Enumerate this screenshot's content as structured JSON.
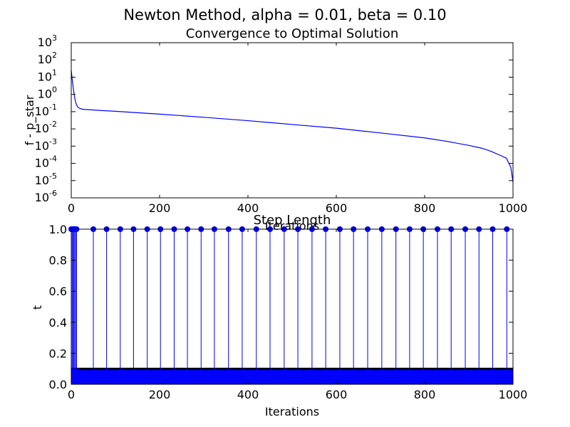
{
  "figure": {
    "suptitle": "Newton Method, alpha = 0.01, beta = 0.10"
  },
  "chart_data": [
    {
      "type": "line",
      "title": "Convergence to Optimal Solution",
      "xlabel": "Iterations",
      "ylabel": "f - p_star",
      "xlim": [
        0,
        1000
      ],
      "ylim": [
        1e-06,
        1000
      ],
      "yscale": "log",
      "grid": false,
      "xticks": [
        0,
        200,
        400,
        600,
        800,
        1000
      ],
      "yticks_exponents": [
        -6,
        -5,
        -4,
        -3,
        -2,
        -1,
        0,
        1,
        2,
        3
      ],
      "series": [
        {
          "color": "#0000ff",
          "x": [
            0,
            2,
            4,
            6,
            8,
            10,
            12,
            15,
            20,
            25,
            30,
            40,
            60,
            100,
            200,
            300,
            400,
            500,
            600,
            700,
            800,
            850,
            900,
            930,
            950,
            970,
            985,
            995,
            1000
          ],
          "y": [
            25,
            8,
            3,
            1.3,
            0.6,
            0.35,
            0.25,
            0.18,
            0.15,
            0.14,
            0.135,
            0.13,
            0.12,
            0.105,
            0.072,
            0.047,
            0.03,
            0.018,
            0.011,
            0.0058,
            0.003,
            0.0019,
            0.0011,
            0.00075,
            0.0005,
            0.0003,
            0.0002,
            6e-05,
            8e-06
          ]
        }
      ]
    },
    {
      "type": "stem",
      "title": "Step Length",
      "xlabel": "Iterations",
      "ylabel": "t",
      "xlim": [
        0,
        1000
      ],
      "ylim": [
        0,
        1.0
      ],
      "grid": false,
      "xticks": [
        0,
        200,
        400,
        600,
        800,
        1000
      ],
      "yticks": [
        0.0,
        0.2,
        0.4,
        0.6,
        0.8,
        1.0
      ],
      "line_color": "#0000ff",
      "baseline_color": "#000000",
      "small_step_value": 0.1,
      "unit_steps": {
        "value": 1.0,
        "x": [
          0,
          2,
          4,
          6,
          8,
          10,
          12,
          50,
          80,
          111,
          141,
          172,
          202,
          233,
          263,
          294,
          324,
          356,
          387,
          419,
          450,
          482,
          513,
          545,
          576,
          608,
          639,
          671,
          703,
          735,
          766,
          797,
          829,
          860,
          892,
          923,
          954,
          986
        ]
      }
    }
  ]
}
